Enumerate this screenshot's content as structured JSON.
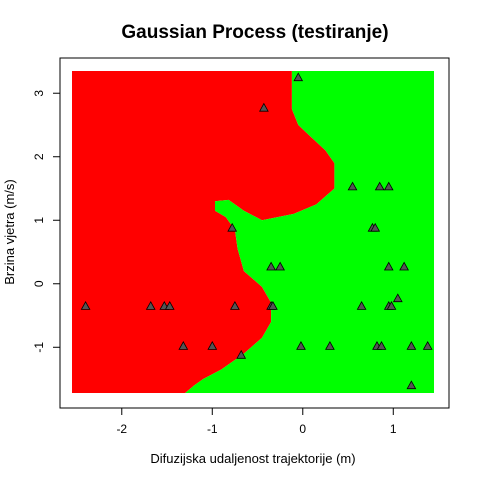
{
  "chart_data": {
    "type": "scatter",
    "title": "Gaussian Process (testiranje)",
    "xlabel": "Difuzijska udaljenost trajektorije (m)",
    "ylabel": "Brzina vjetra (m/s)",
    "xlim": [
      -2.55,
      1.45
    ],
    "ylim": [
      -1.72,
      3.35
    ],
    "x_ticks": [
      -2,
      -1,
      0,
      1
    ],
    "y_ticks": [
      -1,
      0,
      1,
      2,
      3
    ],
    "x_tick_labels": [
      "-2",
      "-1",
      "0",
      "1"
    ],
    "y_tick_labels": [
      "-1",
      "0",
      "1",
      "2",
      "3"
    ],
    "regions": {
      "left_color": "#ff0000",
      "right_color": "#00ff00",
      "boundary": [
        [
          -0.12,
          3.35
        ],
        [
          -0.12,
          2.75
        ],
        [
          -0.05,
          2.5
        ],
        [
          0.1,
          2.3
        ],
        [
          0.25,
          2.1
        ],
        [
          0.35,
          1.9
        ],
        [
          0.35,
          1.5
        ],
        [
          0.15,
          1.25
        ],
        [
          -0.1,
          1.1
        ],
        [
          -0.45,
          1.0
        ],
        [
          -0.65,
          1.15
        ],
        [
          -0.82,
          1.32
        ],
        [
          -0.97,
          1.3
        ],
        [
          -0.97,
          1.15
        ],
        [
          -0.85,
          1.05
        ],
        [
          -0.75,
          0.85
        ],
        [
          -0.72,
          0.55
        ],
        [
          -0.65,
          0.2
        ],
        [
          -0.45,
          -0.05
        ],
        [
          -0.35,
          -0.3
        ],
        [
          -0.35,
          -0.6
        ],
        [
          -0.45,
          -0.85
        ],
        [
          -0.65,
          -1.1
        ],
        [
          -0.9,
          -1.35
        ],
        [
          -1.1,
          -1.5
        ],
        [
          -1.2,
          -1.6
        ],
        [
          -1.3,
          -1.72
        ]
      ]
    },
    "points": [
      {
        "x": -2.4,
        "y": -0.35
      },
      {
        "x": -1.68,
        "y": -0.35
      },
      {
        "x": -1.53,
        "y": -0.35
      },
      {
        "x": -1.47,
        "y": -0.35
      },
      {
        "x": -1.32,
        "y": -0.98
      },
      {
        "x": -1.0,
        "y": -0.98
      },
      {
        "x": -0.78,
        "y": 0.88
      },
      {
        "x": -0.75,
        "y": -0.35
      },
      {
        "x": -0.68,
        "y": -1.12
      },
      {
        "x": -0.43,
        "y": 2.77
      },
      {
        "x": -0.35,
        "y": 0.27
      },
      {
        "x": -0.35,
        "y": -0.35
      },
      {
        "x": -0.33,
        "y": -0.35
      },
      {
        "x": -0.25,
        "y": 0.27
      },
      {
        "x": -0.05,
        "y": 3.25
      },
      {
        "x": -0.02,
        "y": -0.98
      },
      {
        "x": 0.3,
        "y": -0.98
      },
      {
        "x": 0.55,
        "y": 1.53
      },
      {
        "x": 0.65,
        "y": -0.35
      },
      {
        "x": 0.77,
        "y": 0.88
      },
      {
        "x": 0.8,
        "y": 0.88
      },
      {
        "x": 0.82,
        "y": -0.98
      },
      {
        "x": 0.85,
        "y": 1.53
      },
      {
        "x": 0.87,
        "y": -0.98
      },
      {
        "x": 0.95,
        "y": 1.53
      },
      {
        "x": 0.95,
        "y": 0.27
      },
      {
        "x": 0.95,
        "y": -0.35
      },
      {
        "x": 0.98,
        "y": -0.35
      },
      {
        "x": 1.05,
        "y": -0.23
      },
      {
        "x": 1.12,
        "y": 0.27
      },
      {
        "x": 1.2,
        "y": -0.98
      },
      {
        "x": 1.2,
        "y": -1.6
      },
      {
        "x": 1.38,
        "y": -0.98
      }
    ]
  }
}
